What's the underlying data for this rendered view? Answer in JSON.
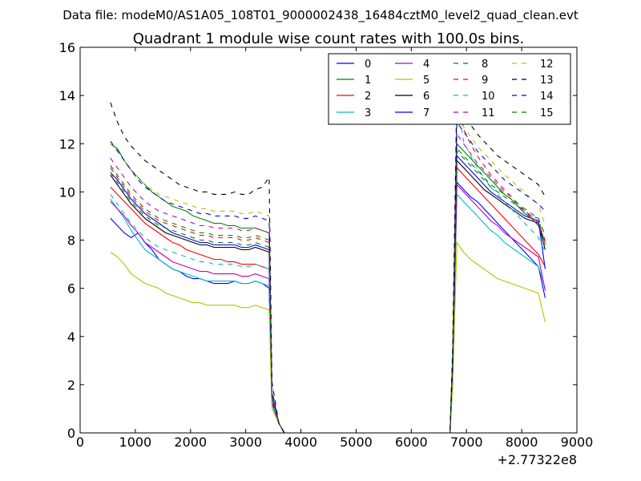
{
  "figure": {
    "suptitle": "Data file: modeM0/AS1A05_108T01_9000002438_16484cztM0_level2_quad_clean.evt"
  },
  "chart_data": {
    "type": "line",
    "title": "Quadrant 1 module wise count rates with 100.0s bins.",
    "xlabel": "",
    "ylabel": "",
    "xlim": [
      0,
      9000
    ],
    "ylim": [
      0,
      16
    ],
    "x_offset_label": "+2.77322e8",
    "x_ticks": [
      0,
      1000,
      2000,
      3000,
      4000,
      5000,
      6000,
      7000,
      8000,
      9000
    ],
    "x_tick_labels": [
      "0",
      "1000",
      "2000",
      "3000",
      "4000",
      "5000",
      "6000",
      "7000",
      "8000",
      "9000"
    ],
    "y_ticks": [
      0,
      2,
      4,
      6,
      8,
      10,
      12,
      14,
      16
    ],
    "y_tick_labels": [
      "0",
      "2",
      "4",
      "6",
      "8",
      "10",
      "12",
      "14",
      "16"
    ],
    "grid": false,
    "legend_position": "top-right",
    "legend_columns": 4,
    "colors": {
      "b": "#0000ff",
      "g": "#008000",
      "r": "#ff0000",
      "c": "#00bfbf",
      "m": "#bf00bf",
      "y": "#bfbf00",
      "k": "#000000"
    },
    "gap_x": [
      3700,
      6700
    ],
    "series": [
      {
        "name": "0",
        "color": "#0000ff",
        "dash": "solid",
        "first": [
          8.9,
          8.6,
          8.3,
          8.1,
          8.3,
          7.9,
          7.6,
          7.2,
          7.0,
          6.8,
          6.7,
          6.5,
          6.4,
          6.4,
          6.3,
          6.2,
          6.2,
          6.2,
          6.3,
          6.2,
          6.2,
          6.3,
          6.2,
          6.0
        ],
        "second": [
          10.4,
          10.1,
          9.8,
          9.6,
          9.3,
          9.0,
          8.7,
          8.4,
          8.1,
          7.8,
          7.5,
          7.2,
          6.9,
          5.6
        ]
      },
      {
        "name": "1",
        "color": "#008000",
        "dash": "solid",
        "first": [
          12.0,
          11.8,
          11.3,
          10.9,
          10.6,
          10.3,
          10.0,
          9.8,
          9.6,
          9.4,
          9.3,
          9.2,
          9.0,
          8.9,
          8.8,
          8.7,
          8.7,
          8.6,
          8.6,
          8.5,
          8.5,
          8.5,
          8.4,
          8.3
        ],
        "second": [
          12.0,
          11.7,
          11.4,
          11.1,
          10.8,
          10.5,
          10.2,
          9.9,
          9.7,
          9.4,
          9.1,
          8.9,
          8.6,
          7.9
        ]
      },
      {
        "name": "2",
        "color": "#ff0000",
        "dash": "solid",
        "first": [
          10.2,
          9.9,
          9.6,
          9.3,
          9.0,
          8.7,
          8.5,
          8.3,
          8.1,
          7.9,
          7.8,
          7.6,
          7.5,
          7.4,
          7.3,
          7.2,
          7.2,
          7.1,
          7.1,
          7.0,
          7.0,
          7.0,
          6.9,
          6.8
        ],
        "second": [
          11.0,
          10.7,
          10.4,
          10.1,
          9.8,
          9.5,
          9.2,
          8.9,
          8.6,
          8.3,
          8.0,
          7.7,
          7.4,
          6.9
        ]
      },
      {
        "name": "3",
        "color": "#00bfbf",
        "dash": "solid",
        "first": [
          9.7,
          9.3,
          8.9,
          8.4,
          8.0,
          7.6,
          7.4,
          7.2,
          7.0,
          6.8,
          6.7,
          6.6,
          6.5,
          6.4,
          6.3,
          6.3,
          6.3,
          6.3,
          6.3,
          6.2,
          6.2,
          6.3,
          6.2,
          6.1
        ],
        "second": [
          9.9,
          9.6,
          9.3,
          9.0,
          8.7,
          8.4,
          8.2,
          7.9,
          7.7,
          7.5,
          7.3,
          7.1,
          6.9,
          6.0
        ]
      },
      {
        "name": "4",
        "color": "#bf00bf",
        "dash": "solid",
        "first": [
          9.6,
          9.3,
          9.0,
          8.6,
          8.3,
          7.9,
          7.7,
          7.5,
          7.3,
          7.1,
          7.0,
          6.9,
          6.8,
          6.7,
          6.7,
          6.6,
          6.6,
          6.6,
          6.6,
          6.5,
          6.5,
          6.6,
          6.5,
          6.4
        ],
        "second": [
          10.3,
          10.0,
          9.7,
          9.4,
          9.1,
          8.8,
          8.6,
          8.3,
          8.1,
          7.9,
          7.7,
          7.5,
          7.3,
          5.9
        ]
      },
      {
        "name": "5",
        "color": "#bfbf00",
        "dash": "solid",
        "first": [
          7.5,
          7.3,
          7.0,
          6.6,
          6.4,
          6.2,
          6.1,
          6.0,
          5.8,
          5.7,
          5.6,
          5.5,
          5.4,
          5.4,
          5.3,
          5.3,
          5.3,
          5.3,
          5.3,
          5.2,
          5.2,
          5.3,
          5.2,
          5.1
        ],
        "second": [
          7.9,
          7.5,
          7.2,
          7.0,
          6.8,
          6.6,
          6.4,
          6.3,
          6.2,
          6.1,
          6.0,
          5.9,
          5.8,
          4.6
        ]
      },
      {
        "name": "6",
        "color": "#000000",
        "dash": "solid",
        "first": [
          10.7,
          10.3,
          9.9,
          9.5,
          9.2,
          8.9,
          8.7,
          8.5,
          8.3,
          8.2,
          8.1,
          8.0,
          7.9,
          7.8,
          7.8,
          7.7,
          7.7,
          7.7,
          7.7,
          7.6,
          7.6,
          7.7,
          7.6,
          7.5
        ],
        "second": [
          11.3,
          11.0,
          10.7,
          10.4,
          10.1,
          9.9,
          9.7,
          9.5,
          9.3,
          9.1,
          8.9,
          8.8,
          8.7,
          7.6
        ]
      },
      {
        "name": "7",
        "color": "#0000ff",
        "dash": "solid",
        "first": [
          10.8,
          10.5,
          10.1,
          9.7,
          9.4,
          9.1,
          8.9,
          8.7,
          8.5,
          8.3,
          8.2,
          8.1,
          8.0,
          7.9,
          7.9,
          7.8,
          7.8,
          7.8,
          7.8,
          7.7,
          7.7,
          7.8,
          7.7,
          7.6
        ],
        "second": [
          11.5,
          11.2,
          10.9,
          10.6,
          10.3,
          10.0,
          9.8,
          9.6,
          9.4,
          9.2,
          9.0,
          8.9,
          8.8,
          6.8
        ]
      },
      {
        "name": "8",
        "color": "#008000",
        "dash": "dashed",
        "first": [
          11.1,
          10.7,
          10.3,
          9.9,
          9.6,
          9.3,
          9.1,
          8.9,
          8.8,
          8.7,
          8.6,
          8.5,
          8.4,
          8.3,
          8.3,
          8.2,
          8.2,
          8.2,
          8.2,
          8.1,
          8.1,
          8.2,
          8.1,
          8.0
        ],
        "second": [
          11.7,
          11.4,
          11.1,
          10.8,
          10.5,
          10.2,
          10.0,
          9.8,
          9.6,
          9.4,
          9.2,
          9.0,
          8.9,
          7.8
        ]
      },
      {
        "name": "9",
        "color": "#ff0000",
        "dash": "dashed",
        "first": [
          11.0,
          10.6,
          10.2,
          9.8,
          9.5,
          9.2,
          9.0,
          8.8,
          8.7,
          8.6,
          8.5,
          8.4,
          8.3,
          8.2,
          8.2,
          8.1,
          8.1,
          8.1,
          8.1,
          8.0,
          8.0,
          8.1,
          8.0,
          7.9
        ],
        "second": [
          14.5,
          12.6,
          12.0,
          11.5,
          11.1,
          10.7,
          10.4,
          10.1,
          9.8,
          9.5,
          9.2,
          8.9,
          8.6,
          7.9
        ]
      },
      {
        "name": "10",
        "color": "#00bfbf",
        "dash": "dashed",
        "first": [
          9.9,
          9.5,
          9.1,
          8.7,
          8.4,
          8.1,
          7.9,
          7.7,
          7.6,
          7.5,
          7.4,
          7.3,
          7.2,
          7.1,
          7.1,
          7.0,
          7.0,
          7.0,
          7.0,
          6.9,
          6.9,
          7.0,
          6.9,
          6.8
        ],
        "second": [
          13.9,
          12.1,
          11.5,
          11.0,
          10.6,
          10.2,
          9.9,
          9.6,
          9.3,
          9.0,
          8.7,
          8.4,
          8.1,
          7.5
        ]
      },
      {
        "name": "11",
        "color": "#bf00bf",
        "dash": "dashed",
        "first": [
          11.4,
          11.0,
          10.6,
          10.2,
          9.9,
          9.6,
          9.4,
          9.2,
          9.1,
          9.0,
          8.9,
          8.8,
          8.7,
          8.6,
          8.6,
          8.5,
          8.5,
          8.5,
          8.5,
          8.4,
          8.4,
          8.5,
          8.4,
          8.3
        ],
        "second": [
          12.4,
          12.0,
          11.6,
          11.2,
          10.9,
          10.6,
          10.3,
          10.0,
          9.8,
          9.5,
          9.2,
          9.0,
          8.7,
          8.0
        ]
      },
      {
        "name": "12",
        "color": "#bfbf00",
        "dash": "dashed",
        "first": [
          12.0,
          11.7,
          11.3,
          10.9,
          10.6,
          10.3,
          10.1,
          9.9,
          9.8,
          9.7,
          9.6,
          9.5,
          9.4,
          9.3,
          9.3,
          9.2,
          9.2,
          9.2,
          9.2,
          9.1,
          9.1,
          9.2,
          9.1,
          9.0
        ],
        "second": [
          13.1,
          12.7,
          12.3,
          11.9,
          11.6,
          11.3,
          11.0,
          10.7,
          10.5,
          10.2,
          10.0,
          9.7,
          9.5,
          8.6
        ]
      },
      {
        "name": "13",
        "color": "#000000",
        "dash": "dashed",
        "first": [
          13.7,
          12.9,
          12.3,
          11.9,
          11.6,
          11.3,
          11.1,
          10.9,
          10.7,
          10.5,
          10.3,
          10.2,
          10.1,
          10.0,
          10.0,
          9.9,
          9.9,
          9.9,
          10.0,
          9.9,
          9.9,
          10.1,
          10.2,
          10.6
        ],
        "second": [
          13.7,
          13.2,
          12.8,
          12.4,
          12.1,
          11.8,
          11.5,
          11.3,
          11.1,
          10.9,
          10.7,
          10.5,
          10.3,
          9.8
        ]
      },
      {
        "name": "14",
        "color": "#0000ff",
        "dash": "dashed",
        "first": [
          12.1,
          11.7,
          11.3,
          10.9,
          10.5,
          10.2,
          10.0,
          9.8,
          9.6,
          9.5,
          9.4,
          9.3,
          9.2,
          9.1,
          9.1,
          9.0,
          9.0,
          9.0,
          9.0,
          8.9,
          8.9,
          9.0,
          8.9,
          8.8
        ],
        "second": [
          12.9,
          12.5,
          12.1,
          11.7,
          11.4,
          11.1,
          10.8,
          10.5,
          10.3,
          10.1,
          9.9,
          9.7,
          9.5,
          9.2
        ]
      },
      {
        "name": "15",
        "color": "#008000",
        "dash": "dashed",
        "first": [
          10.8,
          10.4,
          10.0,
          9.6,
          9.3,
          9.0,
          8.8,
          8.6,
          8.5,
          8.4,
          8.3,
          8.2,
          8.1,
          8.0,
          8.0,
          7.9,
          7.9,
          7.9,
          7.9,
          7.8,
          7.8,
          7.9,
          7.8,
          7.7
        ],
        "second": [
          11.8,
          11.5,
          11.2,
          10.9,
          10.6,
          10.3,
          10.1,
          9.9,
          9.7,
          9.5,
          9.3,
          9.1,
          8.9,
          8.2
        ]
      }
    ]
  }
}
